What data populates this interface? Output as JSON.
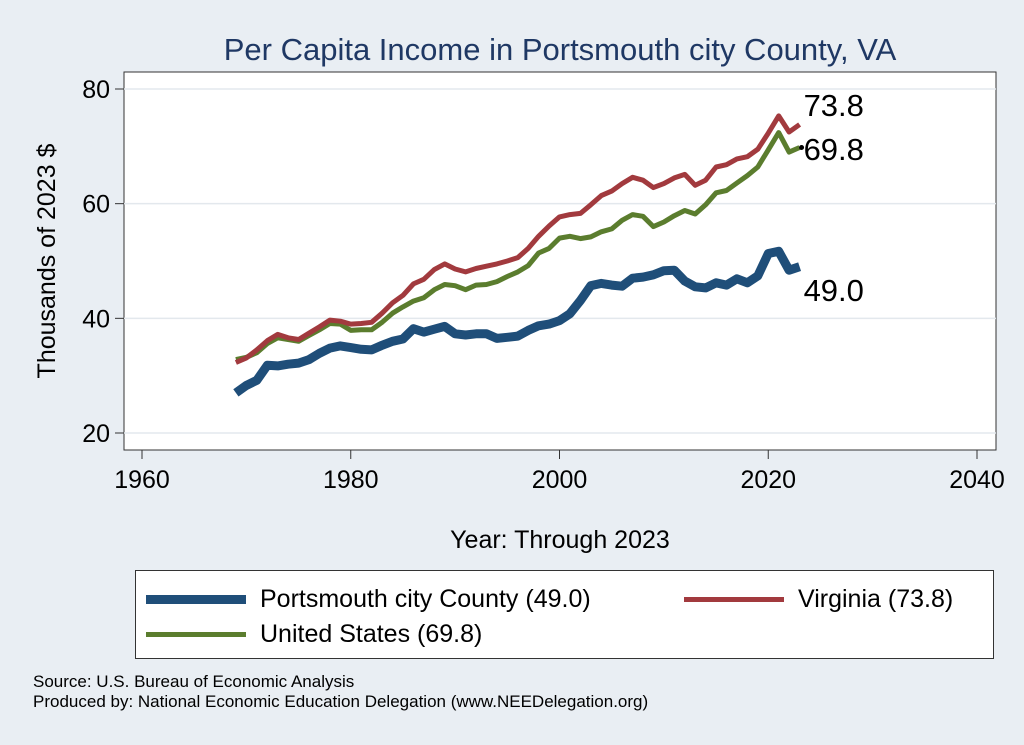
{
  "chart_data": {
    "type": "line",
    "title": "Per Capita Income in Portsmouth city County, VA",
    "xlabel": "Year: Through 2023",
    "ylabel": "Thousands of 2023 $",
    "xlim": [
      1960,
      2040
    ],
    "ylim": [
      20,
      80
    ],
    "xticks": [
      1960,
      1980,
      2000,
      2020,
      2040
    ],
    "yticks": [
      20,
      40,
      60,
      80
    ],
    "grid": true,
    "legend": "bottom",
    "x": [
      1969,
      1970,
      1971,
      1972,
      1973,
      1974,
      1975,
      1976,
      1977,
      1978,
      1979,
      1980,
      1981,
      1982,
      1983,
      1984,
      1985,
      1986,
      1987,
      1988,
      1989,
      1990,
      1991,
      1992,
      1993,
      1994,
      1995,
      1996,
      1997,
      1998,
      1999,
      2000,
      2001,
      2002,
      2003,
      2004,
      2005,
      2006,
      2007,
      2008,
      2009,
      2010,
      2011,
      2012,
      2013,
      2014,
      2015,
      2016,
      2017,
      2018,
      2019,
      2020,
      2021,
      2022,
      2023
    ],
    "series": [
      {
        "name": "Portsmouth city County (49.0)",
        "color": "#1f4e79",
        "width": 9,
        "end_label": "49.0",
        "values": [
          27.0,
          28.3,
          29.2,
          31.8,
          31.7,
          32.0,
          32.2,
          32.8,
          33.9,
          34.8,
          35.2,
          34.9,
          34.6,
          34.5,
          35.3,
          36.0,
          36.4,
          38.2,
          37.6,
          38.1,
          38.6,
          37.3,
          37.1,
          37.3,
          37.3,
          36.5,
          36.7,
          36.9,
          37.9,
          38.7,
          39.0,
          39.6,
          40.8,
          43.1,
          45.7,
          46.1,
          45.8,
          45.6,
          47.0,
          47.2,
          47.6,
          48.3,
          48.4,
          46.5,
          45.5,
          45.3,
          46.2,
          45.8,
          46.9,
          46.2,
          47.4,
          51.3,
          51.7,
          48.4,
          49.0
        ]
      },
      {
        "name": "Virginia (73.8)",
        "color": "#a23a3e",
        "width": 5,
        "end_label": "73.8",
        "values": [
          32.3,
          33.1,
          34.5,
          36.1,
          37.2,
          36.6,
          36.3,
          37.4,
          38.5,
          39.7,
          39.5,
          39.0,
          39.1,
          39.3,
          40.9,
          42.7,
          44.0,
          46.0,
          46.8,
          48.5,
          49.5,
          48.6,
          48.1,
          48.7,
          49.1,
          49.5,
          50.0,
          50.6,
          52.2,
          54.3,
          56.1,
          57.7,
          58.1,
          58.3,
          59.8,
          61.4,
          62.2,
          63.5,
          64.6,
          64.1,
          62.8,
          63.5,
          64.5,
          65.1,
          63.2,
          64.1,
          66.4,
          66.8,
          67.8,
          68.2,
          69.5,
          72.3,
          75.3,
          72.5,
          73.8
        ]
      },
      {
        "name": "United States (69.8)",
        "color": "#5b7d2e",
        "width": 5,
        "end_label": "69.8",
        "values": [
          32.8,
          33.2,
          34.0,
          35.6,
          36.6,
          36.3,
          36.0,
          37.0,
          38.0,
          39.1,
          39.0,
          37.9,
          38.0,
          38.0,
          39.3,
          40.9,
          42.0,
          43.0,
          43.6,
          45.0,
          45.9,
          45.7,
          45.0,
          45.8,
          45.9,
          46.4,
          47.3,
          48.1,
          49.2,
          51.4,
          52.2,
          54.0,
          54.3,
          53.9,
          54.2,
          55.1,
          55.6,
          57.1,
          58.1,
          57.8,
          56.0,
          56.8,
          57.9,
          58.8,
          58.2,
          59.8,
          61.9,
          62.3,
          63.6,
          64.9,
          66.4,
          69.4,
          72.4,
          69.0,
          69.8
        ]
      }
    ],
    "legend_entries": [
      {
        "label": "Portsmouth city County (49.0)"
      },
      {
        "label": "Virginia (73.8)"
      },
      {
        "label": "United States (69.8)"
      }
    ]
  },
  "source": {
    "line1": "Source: U.S. Bureau of Economic Analysis",
    "line2": "Produced by: National Economic Education Delegation (www.NEEDelegation.org)"
  }
}
